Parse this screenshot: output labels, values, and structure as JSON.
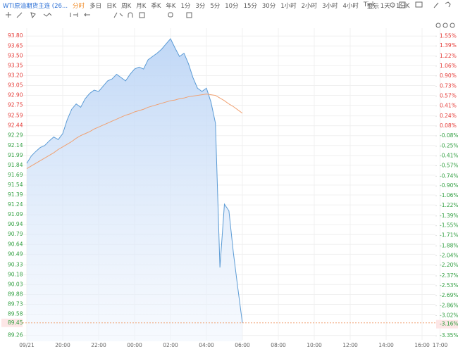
{
  "toolbar": {
    "symbol": "WTI原油期货主连 (26...",
    "periods": [
      "分时",
      "多日",
      "日K",
      "周K",
      "月K",
      "季K",
      "年K",
      "1分",
      "3分",
      "5分",
      "10分",
      "15分",
      "30分",
      "1小时",
      "2小时",
      "3小时",
      "4小时",
      "Tick",
      "1天 : 1分K"
    ],
    "selected_period": 0,
    "display": "显示"
  },
  "chart_data": {
    "type": "area",
    "x": [
      "18:00",
      "18:15",
      "18:30",
      "18:45",
      "19:00",
      "19:15",
      "19:30",
      "19:45",
      "20:00",
      "20:15",
      "20:30",
      "20:45",
      "21:00",
      "21:15",
      "21:30",
      "21:45",
      "22:00",
      "22:15",
      "22:30",
      "22:45",
      "23:00",
      "23:15",
      "23:30",
      "23:45",
      "00:00",
      "00:15",
      "00:30",
      "00:45",
      "01:00",
      "01:15",
      "01:30",
      "01:45",
      "02:00",
      "02:15",
      "02:30",
      "02:45",
      "03:00",
      "03:15",
      "03:30",
      "03:45",
      "04:00",
      "04:15",
      "04:30",
      "04:45",
      "05:00",
      "05:15",
      "05:30",
      "05:45",
      "06:00"
    ],
    "series": [
      {
        "color": "#5b9bd5",
        "values": [
          91.87,
          91.98,
          92.05,
          92.11,
          92.14,
          92.21,
          92.27,
          92.23,
          92.32,
          92.53,
          92.69,
          92.77,
          92.72,
          92.85,
          92.93,
          92.98,
          92.96,
          93.04,
          93.12,
          93.15,
          93.22,
          93.17,
          93.12,
          93.22,
          93.3,
          93.33,
          93.3,
          93.44,
          93.49,
          93.54,
          93.6,
          93.68,
          93.76,
          93.62,
          93.49,
          93.54,
          93.38,
          93.17,
          93.01,
          92.96,
          93.01,
          92.8,
          92.48,
          90.29,
          91.25,
          91.15,
          90.51,
          89.97,
          89.45
        ]
      },
      {
        "color": "#f0a070",
        "values": [
          91.79,
          91.83,
          91.87,
          91.91,
          91.95,
          91.99,
          92.03,
          92.08,
          92.12,
          92.16,
          92.2,
          92.25,
          92.29,
          92.32,
          92.35,
          92.39,
          92.42,
          92.45,
          92.48,
          92.51,
          92.54,
          92.57,
          92.6,
          92.62,
          92.65,
          92.67,
          92.69,
          92.72,
          92.74,
          92.76,
          92.78,
          92.8,
          92.82,
          92.83,
          92.85,
          92.86,
          92.88,
          92.89,
          92.9,
          92.91,
          92.92,
          92.91,
          92.9,
          92.86,
          92.82,
          92.77,
          92.73,
          92.68,
          92.63
        ]
      }
    ],
    "xlim": [
      "18:00",
      "17:00"
    ],
    "xticks": [
      {
        "value": "18:00",
        "label": "09/21"
      },
      "20:00",
      "22:00",
      "00:00",
      "02:00",
      "04:00",
      "06:00",
      "08:00",
      "10:00",
      "12:00",
      "14:00",
      "16:00",
      "17:00"
    ],
    "ylim": [
      89.17,
      93.92
    ],
    "yticks": [
      {
        "value": 93.8,
        "label": "93.80"
      },
      {
        "value": 93.65,
        "label": "93.65"
      },
      {
        "value": 93.5,
        "label": "93.50"
      },
      {
        "value": 93.35,
        "label": "93.35"
      },
      {
        "value": 93.2,
        "label": "93.20"
      },
      {
        "value": 93.05,
        "label": "93.05"
      },
      {
        "value": 92.9,
        "label": "92.90"
      },
      {
        "value": 92.75,
        "label": "92.75"
      },
      92.59,
      92.44,
      92.29,
      92.14,
      91.99,
      91.84,
      91.69,
      91.54,
      91.39,
      91.24,
      91.09,
      90.94,
      90.79,
      90.64,
      90.49,
      90.33,
      90.18,
      90.03,
      {
        "value": 89.88,
        "label": "89.88"
      },
      89.73,
      89.58,
      89.26
    ],
    "y2lim": [
      -3.44,
      1.68
    ],
    "y2ticks": [
      {
        "value": 1.55,
        "label": "1.55%"
      },
      {
        "value": 1.39,
        "label": "1.39%"
      },
      {
        "value": 1.22,
        "label": "1.22%"
      },
      {
        "value": 1.06,
        "label": "1.06%"
      },
      {
        "value": 0.9,
        "label": "0.90%"
      },
      {
        "value": 0.73,
        "label": "0.73%"
      },
      {
        "value": 0.57,
        "label": "0.57%"
      },
      {
        "value": 0.41,
        "label": "0.41%"
      },
      {
        "value": 0.24,
        "label": "0.24%"
      },
      {
        "value": 0.08,
        "label": "0.08%"
      },
      {
        "value": -0.08,
        "label": "-0.08%"
      },
      {
        "value": -0.25,
        "label": "-0.25%"
      },
      {
        "value": -0.41,
        "label": "-0.41%"
      },
      {
        "value": -0.57,
        "label": "-0.57%"
      },
      {
        "value": -0.74,
        "label": "-0.74%"
      },
      {
        "value": -0.9,
        "label": "-0.90%"
      },
      {
        "value": -1.06,
        "label": "-1.06%"
      },
      {
        "value": -1.22,
        "label": "-1.22%"
      },
      {
        "value": -1.39,
        "label": "-1.39%"
      },
      {
        "value": -1.55,
        "label": "-1.55%"
      },
      {
        "value": -1.71,
        "label": "-1.71%"
      },
      {
        "value": -1.88,
        "label": "-1.88%"
      },
      {
        "value": -2.04,
        "label": "-2.04%"
      },
      {
        "value": -2.2,
        "label": "-2.20%"
      },
      {
        "value": -2.37,
        "label": "-2.37%"
      },
      {
        "value": -2.53,
        "label": "-2.53%"
      },
      {
        "value": -2.69,
        "label": "-2.69%"
      },
      {
        "value": -2.86,
        "label": "-2.86%"
      },
      {
        "value": -3.02,
        "label": "-3.02%"
      },
      {
        "value": -3.35,
        "label": "-3.35%"
      }
    ],
    "last_price": {
      "value": 89.45,
      "label": "89.45"
    },
    "last_change": {
      "value": -3.16,
      "label": "-3.16%"
    },
    "grid": true,
    "up_color": "#e53935",
    "down_color": "#2e9e3e"
  }
}
